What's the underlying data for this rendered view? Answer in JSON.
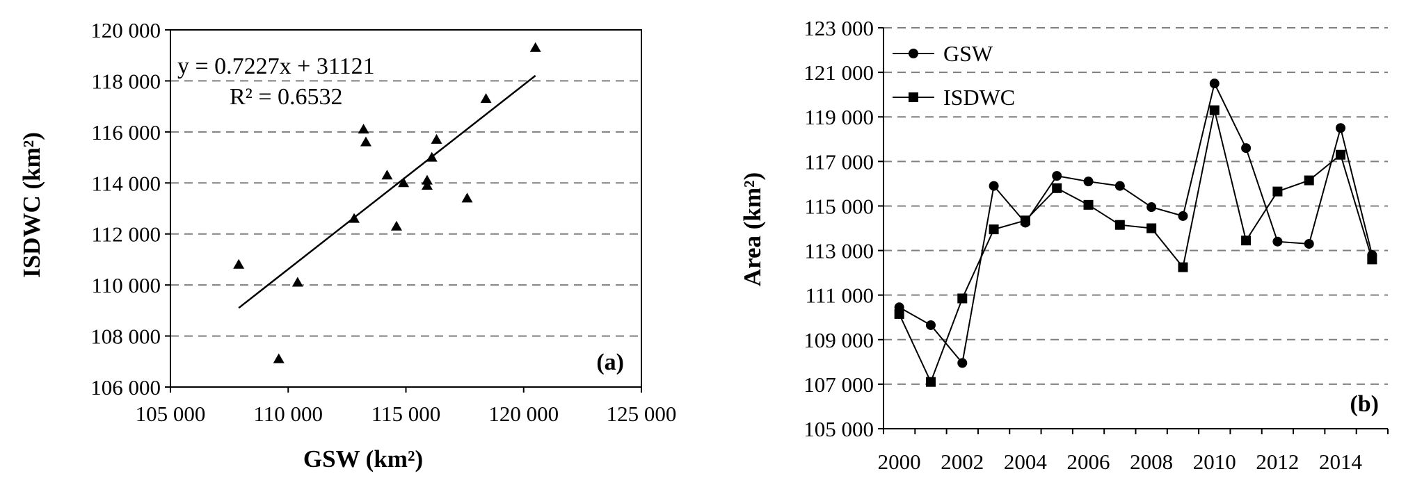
{
  "colors": {
    "ink": "#000000",
    "grid": "#7f7f7f",
    "background": "#ffffff"
  },
  "chart_data": [
    {
      "type": "scatter",
      "panel_label": "(a)",
      "xlabel": "GSW (km²)",
      "ylabel": "ISDWC (km²)",
      "xlim": [
        105000,
        125000
      ],
      "ylim": [
        106000,
        120000
      ],
      "xticks": [
        105000,
        110000,
        115000,
        120000,
        125000
      ],
      "yticks": [
        106000,
        108000,
        110000,
        112000,
        114000,
        116000,
        118000,
        120000
      ],
      "xtick_labels": [
        "105 000",
        "110 000",
        "115 000",
        "120 000",
        "125 000"
      ],
      "ytick_labels": [
        "106 000",
        "108 000",
        "110 000",
        "112 000",
        "114 000",
        "116 000",
        "118 000",
        "120 000"
      ],
      "grid": "horizontal dashed",
      "marker": "triangle",
      "points": [
        {
          "x": 107900,
          "y": 110800
        },
        {
          "x": 109600,
          "y": 107100
        },
        {
          "x": 110400,
          "y": 110100
        },
        {
          "x": 112800,
          "y": 112600
        },
        {
          "x": 113200,
          "y": 116100
        },
        {
          "x": 113300,
          "y": 115600
        },
        {
          "x": 114200,
          "y": 114300
        },
        {
          "x": 114600,
          "y": 112300
        },
        {
          "x": 114900,
          "y": 114000
        },
        {
          "x": 115900,
          "y": 114100
        },
        {
          "x": 115900,
          "y": 113900
        },
        {
          "x": 116100,
          "y": 115000
        },
        {
          "x": 116300,
          "y": 115700
        },
        {
          "x": 117600,
          "y": 113400
        },
        {
          "x": 118400,
          "y": 117300
        },
        {
          "x": 120500,
          "y": 119300
        }
      ],
      "trendline": {
        "slope": 0.7227,
        "intercept": 31121,
        "x_range": [
          107900,
          120500
        ]
      },
      "equation_text": "y = 0.7227x + 31121",
      "r2_text": "R² = 0.6532"
    },
    {
      "type": "line",
      "panel_label": "(b)",
      "ylabel": "Area (km²)",
      "xlim": [
        1999.5,
        2015.5
      ],
      "ylim": [
        105000,
        123000
      ],
      "xticks": [
        2000,
        2002,
        2004,
        2006,
        2008,
        2010,
        2012,
        2014
      ],
      "xtick_labels": [
        "2000",
        "2002",
        "2004",
        "2006",
        "2008",
        "2010",
        "2012",
        "2014"
      ],
      "yticks": [
        105000,
        107000,
        109000,
        111000,
        113000,
        115000,
        117000,
        119000,
        121000,
        123000
      ],
      "ytick_labels": [
        "105 000",
        "107 000",
        "109 000",
        "111 000",
        "113 000",
        "115 000",
        "117 000",
        "119 000",
        "121 000",
        "123 000"
      ],
      "grid": "horizontal dashed",
      "legend_position": "top-left",
      "x": [
        2000,
        2001,
        2002,
        2003,
        2004,
        2005,
        2006,
        2007,
        2008,
        2009,
        2010,
        2011,
        2012,
        2013,
        2014,
        2015
      ],
      "series": [
        {
          "name": "GSW",
          "marker": "circle",
          "values": [
            110450,
            109650,
            107950,
            115900,
            114250,
            116350,
            116100,
            115900,
            114950,
            114550,
            120500,
            117600,
            113400,
            113300,
            118500,
            112800
          ]
        },
        {
          "name": "ISDWC",
          "marker": "square",
          "values": [
            110150,
            107100,
            110850,
            113950,
            114350,
            115800,
            115050,
            114150,
            114000,
            112250,
            119300,
            113450,
            115650,
            116150,
            117300,
            112600
          ]
        }
      ]
    }
  ]
}
